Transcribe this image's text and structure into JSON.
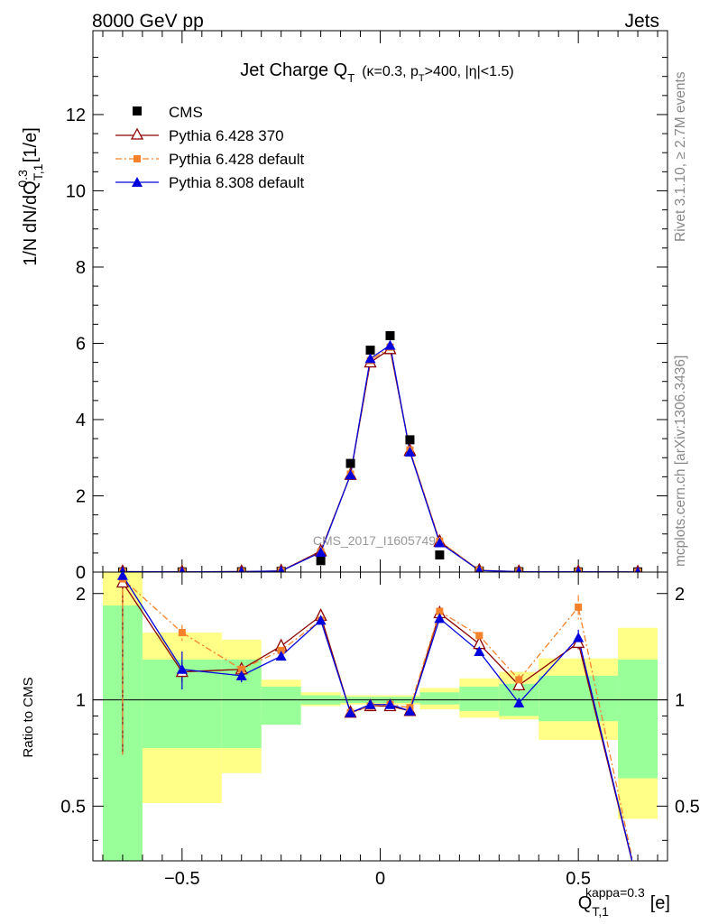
{
  "header": {
    "left": "8000 GeV pp",
    "right": "Jets"
  },
  "side_labels": {
    "rivet": "Rivet 3.1.10, ≥ 2.7M events",
    "mcplots": "mcplots.cern.ch [arXiv:1306.3436]"
  },
  "watermark": "CMS_2017_I1605749",
  "chart_data": [
    {
      "type": "scatter",
      "title": {
        "main": "Jet Charge Q",
        "sub": "T",
        "detail": "(κ=0.3, p",
        "detail_sub": "T",
        "detail_end": ">400, |η|<1.5)"
      },
      "ylabel": "1/N dN/dQ",
      "ylabel_sup": "0.3",
      "ylabel_sub": "T,1",
      "yunit": "[1/e]",
      "xlim": [
        -0.725,
        0.725
      ],
      "ylim": [
        0,
        14.2
      ],
      "yticks": [
        0,
        2,
        4,
        6,
        8,
        10,
        12
      ],
      "legend_position": "top-left",
      "x": [
        -0.65,
        -0.5,
        -0.35,
        -0.25,
        -0.15,
        -0.075,
        -0.025,
        0.025,
        0.075,
        0.15,
        0.25,
        0.35,
        0.5,
        0.65
      ],
      "series": [
        {
          "name": "CMS",
          "color": "#000000",
          "marker": "square",
          "values": [
            0.005,
            0.005,
            0.01,
            0.02,
            0.3,
            2.85,
            5.82,
            6.2,
            3.47,
            0.45,
            0.03,
            0.01,
            0.005,
            0.005
          ]
        },
        {
          "name": "Pythia 6.428 370",
          "color": "#8b0000",
          "marker": "open-triangle",
          "line": "solid",
          "values": [
            0.011,
            0.006,
            0.012,
            0.03,
            0.55,
            2.55,
            5.5,
            5.85,
            3.18,
            0.8,
            0.045,
            0.011,
            0.007,
            0.002
          ]
        },
        {
          "name": "Pythia 6.428 default",
          "color": "#f5822a",
          "marker": "square-small",
          "line": "dashdot",
          "values": [
            0.011,
            0.008,
            0.012,
            0.029,
            0.53,
            2.57,
            5.55,
            5.9,
            3.2,
            0.81,
            0.048,
            0.012,
            0.009,
            0.002
          ]
        },
        {
          "name": "Pythia 8.308 default",
          "color": "#0000dd",
          "marker": "triangle",
          "line": "solid",
          "values": [
            0.012,
            0.006,
            0.011,
            0.028,
            0.52,
            2.55,
            5.6,
            5.95,
            3.15,
            0.77,
            0.042,
            0.01,
            0.007,
            0.001
          ]
        }
      ]
    },
    {
      "type": "scatter",
      "ylabel": "Ratio to CMS",
      "xlabel": "Q",
      "xlabel_sup": "kappa=0.3",
      "xlabel_sub": "T,1",
      "xunit": "[e]",
      "xlim": [
        -0.725,
        0.725
      ],
      "ylim": [
        0.35,
        2.3
      ],
      "reference_line": 1,
      "xticks": [
        "−0.5",
        "0",
        "0.5"
      ],
      "xtick_values": [
        -0.5,
        0,
        0.5
      ],
      "yticks": [
        "0.5",
        "1",
        "2"
      ],
      "ytick_values": [
        0.5,
        1,
        2
      ],
      "bins": [
        -0.7,
        -0.6,
        -0.4,
        -0.3,
        -0.2,
        -0.1,
        -0.05,
        0,
        0.05,
        0.1,
        0.2,
        0.3,
        0.4,
        0.6,
        0.7
      ],
      "band_inner": [
        [
          0.3,
          1.85
        ],
        [
          0.73,
          1.3
        ],
        [
          0.73,
          1.3
        ],
        [
          0.85,
          1.09
        ],
        [
          0.97,
          1.03
        ],
        [
          0.98,
          1.02
        ],
        [
          0.98,
          1.02
        ],
        [
          0.98,
          1.02
        ],
        [
          0.98,
          1.02
        ],
        [
          0.97,
          1.05
        ],
        [
          0.93,
          1.09
        ],
        [
          0.9,
          1.11
        ],
        [
          0.87,
          1.17
        ],
        [
          0.6,
          1.3
        ]
      ],
      "band_outer": [
        [
          0.3,
          2.3
        ],
        [
          0.51,
          1.55
        ],
        [
          0.62,
          1.48
        ],
        [
          0.91,
          1.14
        ],
        [
          0.96,
          1.05
        ],
        [
          0.97,
          1.03
        ],
        [
          0.97,
          1.03
        ],
        [
          0.97,
          1.03
        ],
        [
          0.97,
          1.03
        ],
        [
          0.94,
          1.08
        ],
        [
          0.89,
          1.15
        ],
        [
          0.88,
          1.2
        ],
        [
          0.77,
          1.31
        ],
        [
          0.46,
          1.6
        ]
      ],
      "x": [
        -0.65,
        -0.5,
        -0.35,
        -0.25,
        -0.15,
        -0.075,
        -0.025,
        0.025,
        0.075,
        0.15,
        0.25,
        0.35,
        0.5,
        0.65
      ],
      "series": [
        {
          "name": "Pythia 6.428 370",
          "color": "#8b0000",
          "marker": "open-triangle",
          "line": "solid",
          "values": [
            2.15,
            1.2,
            1.22,
            1.42,
            1.73,
            0.92,
            0.96,
            0.96,
            0.93,
            1.76,
            1.44,
            1.1,
            1.45,
            0.3
          ],
          "err_lo": [
            1.45,
            0.08,
            0.05,
            0.03,
            0.02,
            0,
            0,
            0,
            0,
            0.02,
            0.03,
            0.04,
            0.06,
            0
          ],
          "err_hi": [
            0.05,
            0.08,
            0.05,
            0.03,
            0.02,
            0,
            0,
            0,
            0,
            0.02,
            0.03,
            0.04,
            0.06,
            0
          ]
        },
        {
          "name": "Pythia 6.428 default",
          "color": "#f5822a",
          "marker": "square-small",
          "line": "dashdot",
          "values": [
            2.2,
            1.55,
            1.22,
            1.38,
            1.68,
            0.92,
            0.96,
            0.97,
            0.95,
            1.78,
            1.52,
            1.14,
            1.83,
            0.3
          ],
          "err_lo": [
            1.5,
            0.08,
            0.06,
            0.03,
            0.02,
            0,
            0,
            0,
            0,
            0.02,
            0.03,
            0.04,
            0.15,
            0
          ],
          "err_hi": [
            0.05,
            0.08,
            0.06,
            0.03,
            0.02,
            0,
            0,
            0,
            0,
            0.02,
            0.03,
            0.04,
            0.15,
            0
          ]
        },
        {
          "name": "Pythia 8.308 default",
          "color": "#0000dd",
          "marker": "triangle",
          "line": "solid",
          "values": [
            2.25,
            1.22,
            1.17,
            1.33,
            1.68,
            0.92,
            0.97,
            0.97,
            0.93,
            1.7,
            1.37,
            0.98,
            1.5,
            0.3
          ],
          "err_lo": [
            0.05,
            0.15,
            0.05,
            0.03,
            0.02,
            0,
            0,
            0,
            0,
            0.02,
            0.03,
            0.03,
            0.08,
            0
          ],
          "err_hi": [
            0.05,
            0.15,
            0.05,
            0.03,
            0.02,
            0,
            0,
            0,
            0,
            0.02,
            0.03,
            0.03,
            0.08,
            0
          ]
        }
      ]
    }
  ]
}
